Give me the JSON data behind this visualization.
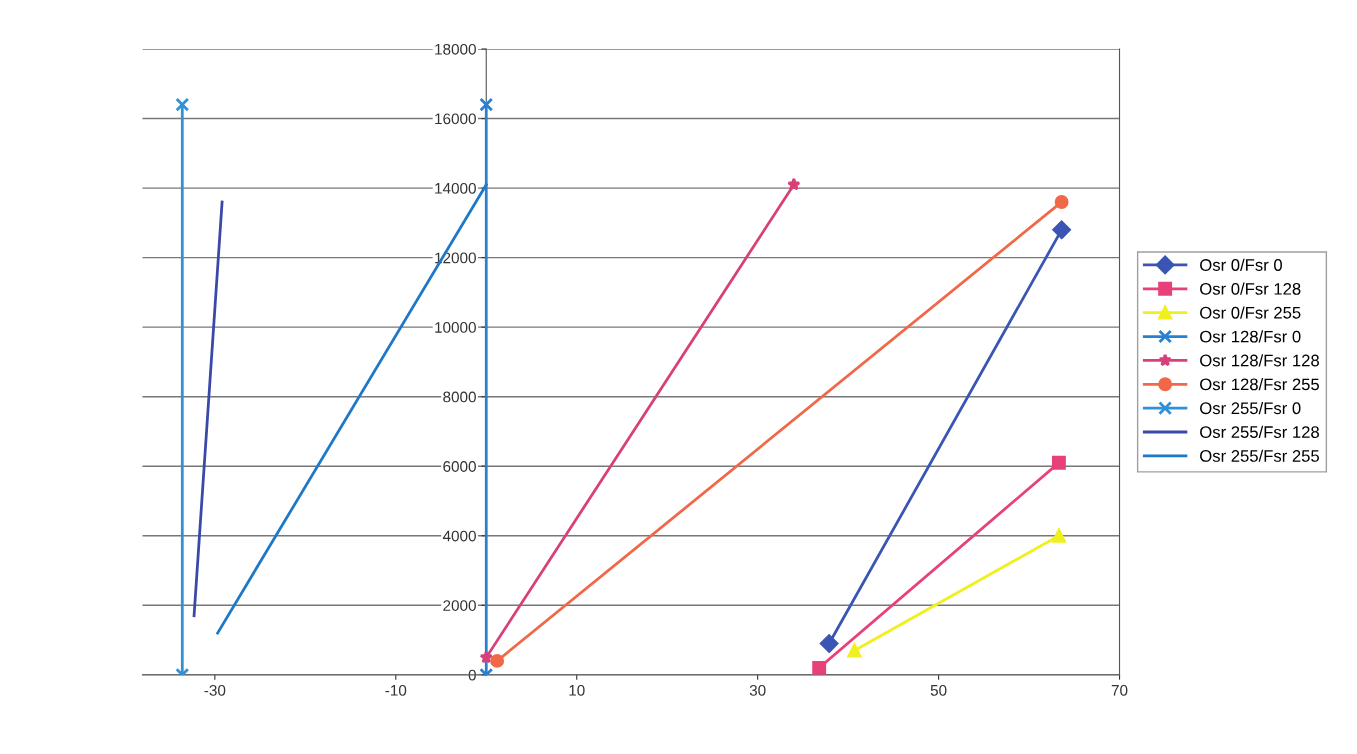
{
  "chart_data": {
    "type": "line",
    "xlim": [
      -38,
      70
    ],
    "xticks": [
      -30,
      -10,
      10,
      30,
      50,
      70
    ],
    "ylim": [
      0,
      18000
    ],
    "yticks": [
      0,
      2000,
      4000,
      6000,
      8000,
      10000,
      12000,
      14000,
      16000,
      18000
    ],
    "grid": "y",
    "legend": "right",
    "series": [
      {
        "name": "Osr 0/Fsr 0",
        "color": "#3a55b4",
        "marker": "diamond",
        "x": [
          37.9,
          63.6
        ],
        "values": [
          900,
          12800
        ]
      },
      {
        "name": "Osr 0/Fsr 128",
        "color": "#e8407a",
        "marker": "square",
        "x": [
          36.8,
          63.3
        ],
        "values": [
          200,
          6100
        ]
      },
      {
        "name": "Osr 0/Fsr 255",
        "color": "#f0f020",
        "marker": "triangle",
        "x": [
          40.7,
          63.3
        ],
        "values": [
          700,
          4000
        ]
      },
      {
        "name": "Osr 128/Fsr 0",
        "color": "#2a80d0",
        "marker": "cross",
        "x": [
          0,
          0
        ],
        "values": [
          0,
          16400
        ]
      },
      {
        "name": "Osr 128/Fsr 128",
        "color": "#d8407a",
        "marker": "star",
        "x": [
          0,
          34.0
        ],
        "values": [
          500,
          14100
        ]
      },
      {
        "name": "Osr 128/Fsr 255",
        "color": "#f06848",
        "marker": "circle",
        "x": [
          1.2,
          63.6
        ],
        "values": [
          400,
          13600
        ]
      },
      {
        "name": "Osr 255/Fsr 0",
        "color": "#3090d8",
        "marker": "cross",
        "x": [
          -33.6,
          -33.6
        ],
        "values": [
          0,
          16400
        ]
      },
      {
        "name": "Osr 255/Fsr 128",
        "color": "#3a48a8",
        "marker": "none",
        "x": [
          -32.3,
          -29.2
        ],
        "values": [
          1700,
          13600
        ]
      },
      {
        "name": "Osr 255/Fsr 255",
        "color": "#1e78c8",
        "marker": "none",
        "x": [
          -29.7,
          0
        ],
        "values": [
          1200,
          14100
        ]
      }
    ]
  }
}
